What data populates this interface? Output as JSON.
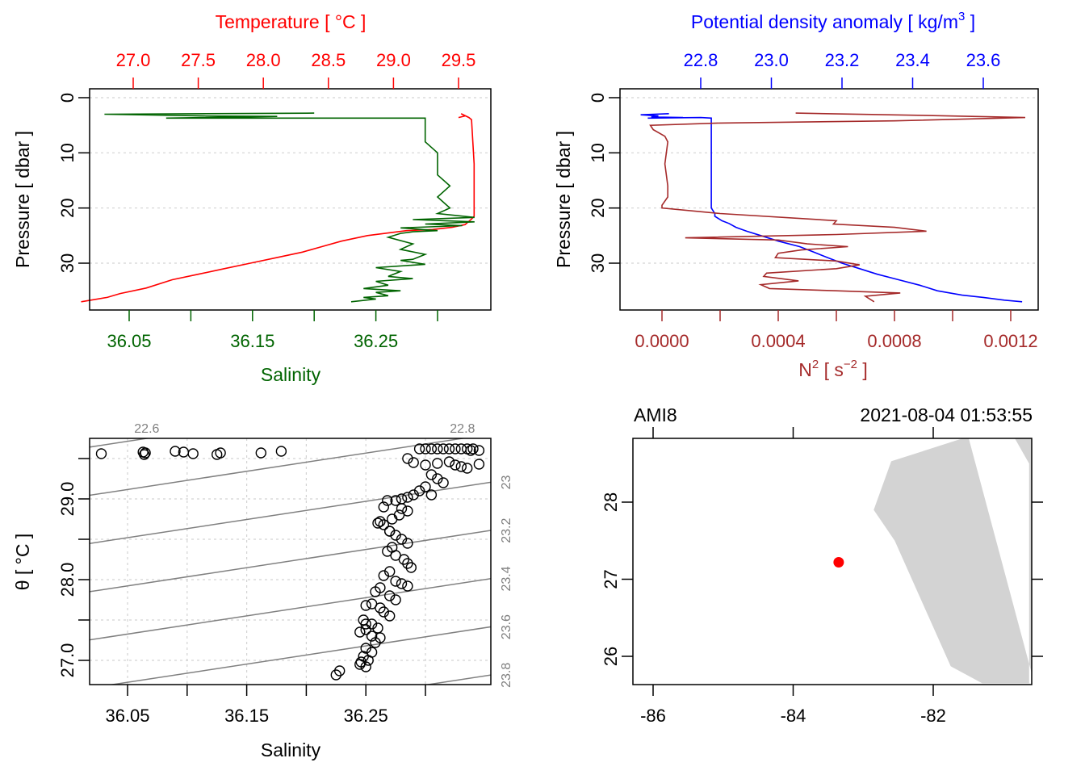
{
  "chart_data": [
    {
      "id": "profile-ts",
      "type": "line",
      "top_axis": {
        "label": "Temperature [ °C ]",
        "ticks": [
          "27.0",
          "27.5",
          "28.0",
          "28.5",
          "29.0",
          "29.5"
        ],
        "tick_values": [
          27.0,
          27.5,
          28.0,
          28.5,
          29.0,
          29.5
        ],
        "color": "#ff0000"
      },
      "bottom_axis": {
        "label": "Salinity",
        "ticks": [
          "36.05",
          "",
          "36.15",
          "",
          "36.25",
          ""
        ],
        "tick_values": [
          36.05,
          36.1,
          36.15,
          36.2,
          36.25,
          36.3
        ],
        "color": "#006400"
      },
      "ylabel": "Pressure [ dbar ]",
      "yticks": [
        "0",
        "10",
        "20",
        "30"
      ],
      "ytick_values": [
        0,
        10,
        20,
        30
      ],
      "ylim": [
        38.5,
        -1.6
      ],
      "grid": true,
      "series": [
        {
          "name": "Temperature",
          "color": "#ff0000",
          "axis": "top",
          "x": [
            29.5,
            29.55,
            29.52,
            29.58,
            29.6,
            29.61,
            29.62,
            29.62,
            29.62,
            29.62,
            29.6,
            29.55,
            29.45,
            29.3,
            29.1,
            28.8,
            28.6,
            28.45,
            28.3,
            28.1,
            27.9,
            27.7,
            27.5,
            27.3,
            27.1,
            26.9,
            26.8,
            26.6
          ],
          "p": [
            3.6,
            3.3,
            2.9,
            3.6,
            4.0,
            8.0,
            12.0,
            16.0,
            20.0,
            21.5,
            22.0,
            23.0,
            23.5,
            23.9,
            24.1,
            25.0,
            26.0,
            27.0,
            28.0,
            29.0,
            30.0,
            31.0,
            32.0,
            33.0,
            34.5,
            35.5,
            36.2,
            37.0
          ]
        },
        {
          "name": "Salinity",
          "color": "#006400",
          "axis": "bottom",
          "x": [
            36.2,
            36.03,
            36.11,
            36.17,
            36.08,
            36.29,
            36.29,
            36.29,
            36.3,
            36.3,
            36.3,
            36.31,
            36.3,
            36.31,
            36.3,
            36.33,
            36.28,
            36.33,
            36.29,
            36.32,
            36.27,
            36.3,
            36.28,
            36.27,
            36.26,
            36.28,
            36.27,
            36.29,
            36.28,
            36.27,
            36.29,
            36.25,
            36.27,
            36.26,
            36.28,
            36.25,
            36.26,
            36.24,
            36.27,
            36.25,
            36.26,
            36.24,
            36.25,
            36.23
          ],
          "p": [
            2.8,
            3.0,
            3.3,
            3.4,
            3.7,
            3.7,
            6.0,
            8.0,
            10.0,
            12.0,
            14.0,
            16.0,
            18.0,
            20.0,
            21.0,
            21.7,
            22.1,
            22.5,
            22.9,
            23.2,
            23.6,
            24.1,
            24.3,
            24.6,
            25.3,
            26.5,
            27.5,
            28.4,
            29.3,
            29.5,
            30.2,
            30.8,
            31.5,
            32.4,
            32.8,
            33.3,
            34.0,
            34.6,
            35.0,
            35.3,
            35.9,
            36.2,
            36.5,
            37.0
          ]
        }
      ]
    },
    {
      "id": "profile-density-n2",
      "type": "line",
      "top_axis": {
        "label": "Potential density anomaly [ kg/m",
        "label_sup": "3",
        "label_end": " ]",
        "ticks": [
          "22.8",
          "23.0",
          "23.2",
          "23.4",
          "23.6"
        ],
        "tick_values": [
          22.8,
          23.0,
          23.2,
          23.4,
          23.6
        ],
        "color": "#0000ff"
      },
      "bottom_axis": {
        "label": "N",
        "label_sup": "2",
        "label_mid": " [ s",
        "label_sup2": "−2",
        "label_end": " ]",
        "ticks": [
          "0.0000",
          "",
          "0.0004",
          "",
          "0.0008",
          "",
          "0.0012"
        ],
        "tick_values": [
          0,
          0.0002,
          0.0004,
          0.0006,
          0.0008,
          0.001,
          0.0012
        ],
        "color": "#a52a2a"
      },
      "ylabel": "Pressure [ dbar ]",
      "yticks": [
        "0",
        "10",
        "20",
        "30"
      ],
      "ytick_values": [
        0,
        10,
        20,
        30
      ],
      "ylim": [
        38.5,
        -1.6
      ],
      "grid": true,
      "series": [
        {
          "name": "Potential density anomaly",
          "color": "#0000ff",
          "axis": "top",
          "x": [
            22.71,
            22.63,
            22.68,
            22.66,
            22.75,
            22.65,
            22.8,
            22.83,
            22.83,
            22.83,
            22.83,
            22.84,
            22.84,
            22.86,
            22.88,
            22.9,
            22.93,
            22.97,
            23.02,
            23.08,
            23.12,
            23.16,
            23.2,
            23.25,
            23.3,
            23.36,
            23.42,
            23.47,
            23.54,
            23.6,
            23.66,
            23.71
          ],
          "p": [
            2.9,
            3.1,
            3.3,
            3.5,
            3.6,
            3.7,
            3.6,
            3.7,
            8.0,
            14.0,
            20.0,
            21.0,
            21.5,
            22.3,
            22.8,
            23.5,
            24.2,
            25.0,
            26.0,
            27.0,
            28.0,
            29.0,
            30.0,
            31.0,
            32.0,
            33.0,
            34.0,
            35.0,
            35.8,
            36.2,
            36.7,
            37.0
          ]
        },
        {
          "name": "N2",
          "color": "#a52a2a",
          "axis": "bottom",
          "x": [
            0.00046,
            0.0009,
            0.00125,
            0.0008,
            0.0002,
            -4e-05,
            -3e-05,
            1e-05,
            2e-05,
            1e-05,
            2e-05,
            2e-05,
            0.0,
            0.0,
            0.0002,
            0.0006,
            0.00059,
            0.0008,
            0.00091,
            0.0006,
            8e-05,
            0.0004,
            0.0005,
            0.00064,
            0.00048,
            0.0004,
            0.00039,
            0.0006,
            0.00068,
            0.0006,
            0.00036,
            0.00035,
            0.00047,
            0.00034,
            0.00037,
            0.0006,
            0.00082,
            0.0007,
            0.00073
          ],
          "p": [
            2.8,
            3.2,
            3.6,
            4.2,
            4.6,
            5.0,
            5.8,
            7.0,
            8.0,
            12.0,
            16.0,
            18.0,
            19.5,
            20.0,
            21.0,
            22.3,
            22.9,
            23.5,
            24.2,
            24.8,
            25.4,
            25.8,
            26.5,
            27.0,
            27.6,
            28.2,
            29.0,
            29.6,
            30.3,
            31.0,
            31.8,
            32.4,
            33.2,
            33.9,
            34.6,
            35.0,
            35.4,
            36.0,
            37.0
          ]
        }
      ]
    },
    {
      "id": "ts-diagram",
      "type": "scatter",
      "xlabel": "Salinity",
      "ylabel": "θ [ °C ]",
      "xticks": [
        "36.05",
        "",
        "36.15",
        "",
        "36.25",
        ""
      ],
      "xtick_values": [
        36.05,
        36.1,
        36.15,
        36.2,
        36.25,
        36.3
      ],
      "yticks": [
        "27.0",
        "",
        "28.0",
        "",
        "29.0",
        ""
      ],
      "ytick_values": [
        27.0,
        27.5,
        28.0,
        28.5,
        29.0,
        29.5
      ],
      "xlim": [
        36.018,
        36.354
      ],
      "ylim": [
        26.7,
        29.75
      ],
      "grid": true,
      "isopycnal_labels": [
        "22.6",
        "22.8",
        "23",
        "23.2",
        "23.4",
        "23.6",
        "23.8"
      ],
      "isopycnal_values": [
        22.6,
        22.8,
        23.0,
        23.2,
        23.4,
        23.6,
        23.8
      ],
      "isopycnal_color": "#808080",
      "points": {
        "S": [
          36.028,
          36.063,
          36.064,
          36.065,
          36.09,
          36.097,
          36.105,
          36.125,
          36.128,
          36.162,
          36.179,
          36.295,
          36.3,
          36.305,
          36.31,
          36.315,
          36.32,
          36.325,
          36.33,
          36.335,
          36.34,
          36.338,
          36.345,
          36.285,
          36.29,
          36.3,
          36.31,
          36.32,
          36.325,
          36.33,
          36.335,
          36.345,
          36.305,
          36.31,
          36.315,
          36.3,
          36.295,
          36.305,
          36.29,
          36.285,
          36.28,
          36.275,
          36.268,
          36.265,
          36.28,
          36.285,
          36.278,
          36.272,
          36.262,
          36.265,
          36.27,
          36.275,
          36.28,
          36.285,
          36.272,
          36.268,
          36.275,
          36.282,
          36.285,
          36.288,
          36.27,
          36.265,
          36.275,
          36.28,
          36.285,
          36.262,
          36.258,
          36.27,
          36.275,
          36.255,
          36.25,
          36.262,
          36.265,
          36.27,
          36.248,
          36.255,
          36.26,
          36.25,
          36.245,
          36.255,
          36.262,
          36.258,
          36.25,
          36.255,
          36.248,
          36.252,
          36.245,
          36.25,
          36.246,
          36.225,
          36.228,
          36.27,
          36.26,
          36.25
        ],
        "T": [
          29.56,
          29.58,
          29.55,
          29.57,
          29.59,
          29.58,
          29.56,
          29.55,
          29.57,
          29.57,
          29.59,
          29.62,
          29.62,
          29.62,
          29.62,
          29.62,
          29.62,
          29.62,
          29.62,
          29.62,
          29.62,
          29.6,
          29.6,
          29.5,
          29.45,
          29.42,
          29.44,
          29.46,
          29.42,
          29.4,
          29.38,
          29.43,
          29.3,
          29.25,
          29.2,
          29.15,
          29.1,
          29.05,
          29.05,
          29.02,
          29.0,
          28.98,
          28.98,
          28.9,
          28.88,
          28.85,
          28.8,
          28.75,
          28.72,
          28.68,
          28.6,
          28.55,
          28.5,
          28.45,
          28.4,
          28.35,
          28.3,
          28.25,
          28.2,
          28.15,
          28.1,
          28.05,
          27.98,
          27.95,
          27.92,
          27.9,
          27.85,
          27.8,
          27.75,
          27.7,
          27.68,
          27.65,
          27.6,
          27.55,
          27.5,
          27.45,
          27.4,
          27.38,
          27.35,
          27.3,
          27.28,
          27.22,
          27.15,
          27.1,
          27.05,
          27.0,
          26.95,
          26.92,
          26.98,
          26.82,
          26.87,
          28.6,
          28.7,
          27.45
        ]
      }
    },
    {
      "id": "station-map",
      "type": "scatter",
      "title_left": "AMI8",
      "title_right": "2021-08-04 01:53:55",
      "xticks": [
        "-86",
        "-84",
        "-82"
      ],
      "xtick_values": [
        -86,
        -84,
        -82
      ],
      "yticks": [
        "26",
        "27",
        "28"
      ],
      "ytick_values": [
        26,
        27,
        28
      ],
      "xlim": [
        -86.33,
        -80.63
      ],
      "ylim": [
        25.65,
        28.85
      ],
      "land_color": "#d3d3d3",
      "station": {
        "lon": -83.35,
        "lat": 27.22,
        "color": "#ff0000"
      },
      "coastline": {
        "lon": [
          -81.5,
          -82.6,
          -82.85,
          -82.55,
          -81.75,
          -81.3,
          -80.63,
          -80.63,
          -80.85
        ],
        "lat": [
          28.85,
          28.53,
          27.9,
          27.5,
          25.87,
          25.65,
          25.65,
          28.5,
          28.85
        ]
      }
    }
  ]
}
